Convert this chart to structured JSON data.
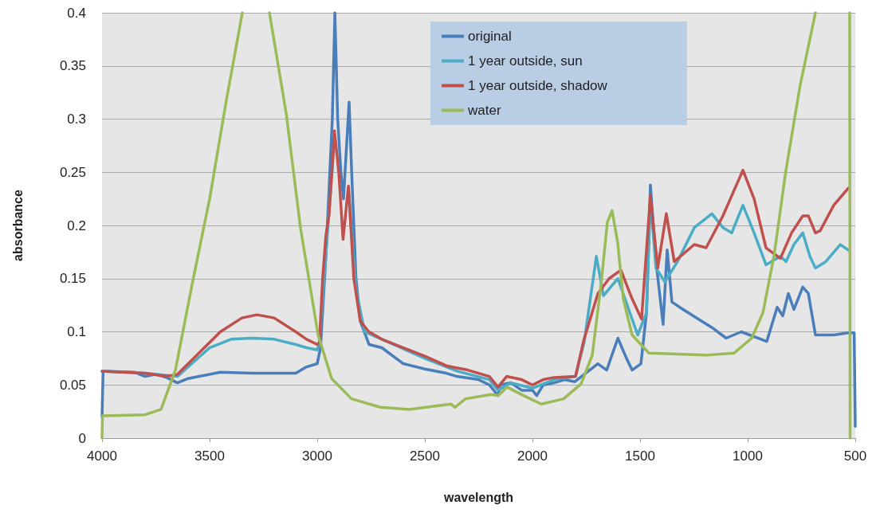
{
  "chart_data": {
    "type": "line",
    "xlabel": "wavelength",
    "ylabel": "absorbance",
    "xlim": [
      4000,
      500
    ],
    "xticks": [
      4000,
      3500,
      3000,
      2500,
      2000,
      1500,
      1000,
      500
    ],
    "ylim": [
      0,
      0.4
    ],
    "yticks": [
      0,
      0.05,
      0.1,
      0.15,
      0.2,
      0.25,
      0.3,
      0.35,
      0.4
    ],
    "grid": "y",
    "legend": "top",
    "marker": "none",
    "line_style": "solid",
    "series": [
      {
        "name": "original",
        "color": "#4a7ebb",
        "x": [
          4000,
          3995,
          3850,
          3800,
          3750,
          3700,
          3650,
          3600,
          3550,
          3450,
          3300,
          3100,
          3050,
          3000,
          2985,
          2960,
          2945,
          2930,
          2918,
          2905,
          2890,
          2878,
          2852,
          2840,
          2820,
          2800,
          2759,
          2700,
          2600,
          2500,
          2400,
          2350,
          2250,
          2200,
          2160,
          2150,
          2100,
          2050,
          2000,
          1980,
          1950,
          1900,
          1850,
          1803,
          1696,
          1655,
          1603,
          1563,
          1537,
          1496,
          1470,
          1452,
          1426,
          1393,
          1374,
          1352,
          1300,
          1166,
          1100,
          1030,
          911,
          863,
          837,
          811,
          785,
          744,
          718,
          685,
          600,
          533,
          505,
          500
        ],
        "values": [
          0.02,
          0.063,
          0.062,
          0.058,
          0.06,
          0.057,
          0.052,
          0.056,
          0.058,
          0.062,
          0.061,
          0.061,
          0.067,
          0.07,
          0.085,
          0.17,
          0.235,
          0.3,
          0.4,
          0.3,
          0.25,
          0.225,
          0.316,
          0.25,
          0.15,
          0.11,
          0.088,
          0.085,
          0.07,
          0.065,
          0.061,
          0.058,
          0.055,
          0.05,
          0.04,
          0.05,
          0.052,
          0.045,
          0.045,
          0.04,
          0.05,
          0.052,
          0.055,
          0.053,
          0.07,
          0.064,
          0.094,
          0.075,
          0.064,
          0.07,
          0.118,
          0.238,
          0.166,
          0.107,
          0.177,
          0.128,
          0.121,
          0.104,
          0.094,
          0.1,
          0.091,
          0.123,
          0.115,
          0.136,
          0.121,
          0.142,
          0.136,
          0.097,
          0.097,
          0.099,
          0.099,
          0.011
        ]
      },
      {
        "name": "1 year outside, sun",
        "color": "#4bacc6",
        "x": [
          4000,
          3800,
          3650,
          3500,
          3400,
          3300,
          3200,
          3100,
          3050,
          3000,
          2990,
          2950,
          2920,
          2880,
          2855,
          2820,
          2780,
          2700,
          2500,
          2350,
          2200,
          2160,
          2100,
          2000,
          1900,
          1800,
          1760,
          1703,
          1670,
          1603,
          1511,
          1470,
          1452,
          1426,
          1385,
          1326,
          1248,
          1166,
          1115,
          1074,
          1022,
          970,
          915,
          848,
          822,
          785,
          744,
          711,
          685,
          637,
          570,
          533
        ],
        "values": [
          0.063,
          0.061,
          0.058,
          0.085,
          0.093,
          0.094,
          0.093,
          0.088,
          0.085,
          0.083,
          0.09,
          0.2,
          0.28,
          null,
          0.235,
          0.14,
          0.1,
          0.093,
          0.075,
          0.063,
          0.055,
          0.045,
          0.052,
          0.047,
          0.055,
          0.058,
          0.09,
          0.171,
          0.134,
          0.15,
          0.097,
          0.118,
          0.225,
          0.16,
          0.147,
          0.166,
          0.198,
          0.211,
          0.198,
          0.193,
          0.219,
          0.193,
          0.163,
          0.171,
          0.166,
          0.182,
          0.193,
          0.171,
          0.16,
          0.166,
          0.182,
          0.177
        ]
      },
      {
        "name": "1 year outside, shadow",
        "color": "#c0504d",
        "x": [
          4000,
          3800,
          3700,
          3650,
          3550,
          3450,
          3350,
          3280,
          3200,
          3100,
          3050,
          3000,
          2990,
          2975,
          2960,
          2945,
          2920,
          2900,
          2880,
          2855,
          2830,
          2800,
          2760,
          2700,
          2600,
          2500,
          2400,
          2300,
          2200,
          2160,
          2120,
          2050,
          2000,
          1950,
          1900,
          1800,
          1763,
          1696,
          1644,
          1589,
          1537,
          1493,
          1452,
          1418,
          1378,
          1341,
          1248,
          1193,
          1115,
          1022,
          970,
          915,
          848,
          796,
          744,
          718,
          685,
          663,
          600,
          533
        ],
        "values": [
          0.063,
          0.061,
          0.058,
          0.06,
          0.08,
          0.1,
          0.113,
          0.116,
          0.113,
          0.1,
          0.093,
          0.088,
          0.09,
          0.15,
          0.19,
          0.21,
          0.289,
          0.25,
          0.187,
          0.237,
          0.15,
          0.11,
          0.1,
          0.093,
          0.085,
          0.077,
          0.068,
          0.064,
          0.058,
          0.048,
          0.058,
          0.055,
          0.05,
          0.055,
          0.057,
          0.058,
          0.091,
          0.136,
          0.15,
          0.158,
          0.131,
          0.112,
          0.228,
          0.16,
          0.211,
          0.166,
          0.182,
          0.179,
          0.209,
          0.252,
          0.225,
          0.179,
          0.169,
          0.193,
          0.209,
          0.209,
          0.193,
          0.195,
          0.219,
          0.235
        ]
      },
      {
        "name": "water",
        "color": "#9bbb59",
        "x": [
          4000,
          3998,
          3800,
          3726,
          3659,
          3581,
          3500,
          3422,
          3348,
          3285,
          3222,
          3144,
          3078,
          2996,
          2933,
          2841,
          2707,
          2574,
          2378,
          2360,
          2311,
          2193,
          2159,
          2119,
          2041,
          1959,
          1855,
          1774,
          1722,
          1681,
          1652,
          1630,
          1604,
          1578,
          1537,
          1459,
          1193,
          1063,
          981,
          929,
          878,
          822,
          756,
          685,
          600,
          526,
          524
        ],
        "values": [
          0,
          0.021,
          0.022,
          0.027,
          0.064,
          0.145,
          0.225,
          0.318,
          0.4,
          null,
          0.4,
          0.305,
          0.198,
          0.097,
          0.056,
          0.037,
          0.029,
          0.027,
          0.032,
          0.029,
          0.037,
          0.041,
          0.04,
          0.048,
          0.04,
          0.032,
          0.037,
          0.051,
          0.078,
          0.145,
          0.203,
          0.214,
          0.184,
          0.131,
          0.097,
          0.08,
          0.078,
          0.08,
          0.094,
          0.118,
          0.171,
          0.252,
          0.332,
          0.4,
          null,
          0.4,
          0
        ]
      }
    ]
  }
}
